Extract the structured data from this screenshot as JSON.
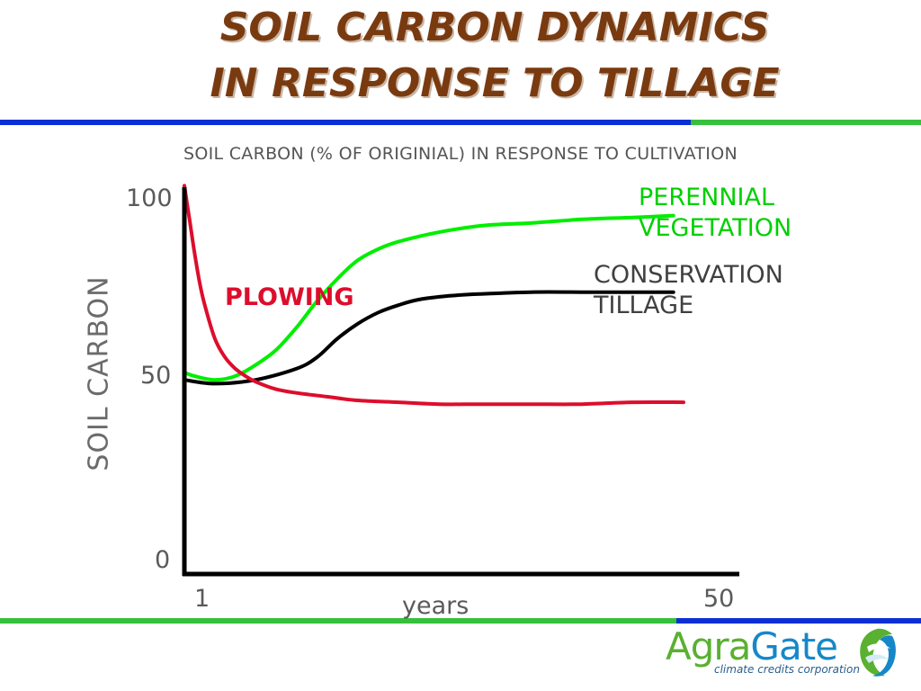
{
  "title_line1": "SOIL CARBON DYNAMICS",
  "title_line2": "IN RESPONSE TO TILLAGE",
  "colors": {
    "rule_blue": "#0b2ed6",
    "rule_green": "#35c13b",
    "title": "#7a3a10"
  },
  "chart_data": {
    "type": "line",
    "subtitle": "SOIL CARBON (% OF ORIGINIAL) IN RESPONSE TO CULTIVATION",
    "ylabel": "SOIL CARBON",
    "xlabel": "years",
    "y_ticks": [
      "100",
      "50",
      "0"
    ],
    "x_ticks": [
      "1",
      "50"
    ],
    "xlim": [
      1,
      50
    ],
    "ylim": [
      0,
      100
    ],
    "grid": false,
    "legend": "none (series labeled on chart)",
    "series": [
      {
        "name": "PERENNIAL VEGETATION",
        "color": "#00ee00",
        "x": [
          1,
          2,
          4,
          6,
          8,
          10,
          12,
          14,
          16,
          18,
          20,
          22,
          25,
          28,
          31,
          35,
          40,
          45,
          49
        ],
        "y": [
          54,
          53,
          52,
          53,
          56,
          60,
          66,
          73,
          79,
          84,
          87,
          89,
          91,
          92.5,
          93.5,
          94,
          95,
          95.5,
          96
        ]
      },
      {
        "name": "CONSERVATION TILLAGE",
        "color": "#000000",
        "x": [
          1,
          4,
          8,
          12,
          14,
          16,
          18,
          20,
          22,
          24,
          27,
          30,
          35,
          40,
          45,
          49
        ],
        "y": [
          52,
          51,
          52,
          55,
          58,
          63,
          67,
          70,
          72,
          73.5,
          74.5,
          75,
          75.5,
          75.5,
          75.5,
          75.5
        ]
      },
      {
        "name": "PLOWING",
        "color": "#dd0d2c",
        "x": [
          1,
          1.5,
          2,
          2.5,
          3,
          4,
          5,
          6,
          7,
          8,
          10,
          12,
          15,
          18,
          22,
          26,
          30,
          35,
          40,
          45,
          50
        ],
        "y": [
          104,
          95,
          86,
          78,
          72,
          63,
          58,
          55,
          53,
          51.5,
          49.5,
          48.5,
          47.5,
          46.5,
          46,
          45.5,
          45.5,
          45.5,
          45.5,
          46,
          46
        ]
      }
    ]
  },
  "annotations": {
    "green_line1": "PERENNIAL",
    "green_line2": "VEGETATION",
    "black_line1": "CONSERVATION",
    "black_line2": "TILLAGE",
    "red": "PLOWING"
  },
  "logo": {
    "word_part1": "Agra",
    "word_part2": "Gate",
    "tagline": "climate credits corporation"
  }
}
